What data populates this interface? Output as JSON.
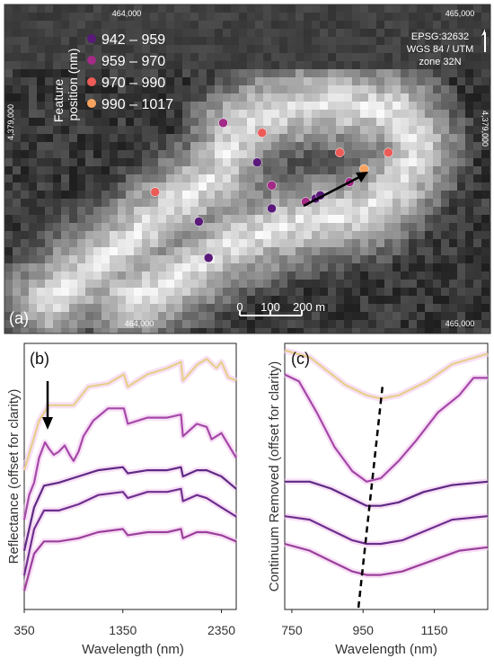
{
  "chart_data": [
    {
      "type": "scatter",
      "panel_label": "(a)",
      "legend_title": [
        "Feature",
        "position (nm)"
      ],
      "legend": [
        {
          "label": "942 – 959",
          "color": "#5a1a7a"
        },
        {
          "label": "959 – 970",
          "color": "#a32a86"
        },
        {
          "label": "970 – 990",
          "color": "#ec5b57"
        },
        {
          "label": "990 – 1017",
          "color": "#f7a35f"
        }
      ],
      "projection": [
        "EPSG:32632",
        "WGS 84 / UTM",
        "zone 32N"
      ],
      "x_ticks": [
        "464,000",
        "465,000"
      ],
      "y_ticks": [
        "4,379,000",
        "4,379,000"
      ],
      "scale_bar": [
        "0",
        "100",
        "200 m"
      ],
      "points": [
        {
          "cls": 1,
          "x": 0.45,
          "y": 0.36
        },
        {
          "cls": 2,
          "x": 0.53,
          "y": 0.39
        },
        {
          "cls": 0,
          "x": 0.52,
          "y": 0.48
        },
        {
          "cls": 2,
          "x": 0.69,
          "y": 0.45
        },
        {
          "cls": 2,
          "x": 0.79,
          "y": 0.45
        },
        {
          "cls": 3,
          "x": 0.74,
          "y": 0.5
        },
        {
          "cls": 1,
          "x": 0.71,
          "y": 0.54
        },
        {
          "cls": 1,
          "x": 0.55,
          "y": 0.55
        },
        {
          "cls": 0,
          "x": 0.64,
          "y": 0.59
        },
        {
          "cls": 0,
          "x": 0.65,
          "y": 0.58
        },
        {
          "cls": 1,
          "x": 0.62,
          "y": 0.6
        },
        {
          "cls": 0,
          "x": 0.55,
          "y": 0.62
        },
        {
          "cls": 2,
          "x": 0.31,
          "y": 0.57
        },
        {
          "cls": 0,
          "x": 0.4,
          "y": 0.66
        },
        {
          "cls": 0,
          "x": 0.42,
          "y": 0.77
        }
      ]
    },
    {
      "type": "line",
      "panel_label": "(b)",
      "xlabel": "Wavelength (nm)",
      "ylabel": "Reflectance (offset for clarity)",
      "xlim": [
        350,
        2500
      ],
      "xticks": [
        350,
        1350,
        2350
      ],
      "series": [
        {
          "color": "#e6cf8b",
          "points": [
            [
              350,
              0.62
            ],
            [
              500,
              0.78
            ],
            [
              600,
              0.83
            ],
            [
              700,
              0.83
            ],
            [
              850,
              0.83
            ],
            [
              1000,
              0.89
            ],
            [
              1200,
              0.9
            ],
            [
              1360,
              0.93
            ],
            [
              1400,
              0.89
            ],
            [
              1600,
              0.93
            ],
            [
              1800,
              0.95
            ],
            [
              1940,
              0.97
            ],
            [
              1960,
              0.91
            ],
            [
              2100,
              0.96
            ],
            [
              2200,
              0.98
            ],
            [
              2300,
              0.95
            ],
            [
              2350,
              0.97
            ],
            [
              2420,
              0.92
            ],
            [
              2500,
              0.91
            ]
          ]
        },
        {
          "color": "#a548a8",
          "points": [
            [
              350,
              0.46
            ],
            [
              400,
              0.54
            ],
            [
              450,
              0.58
            ],
            [
              500,
              0.66
            ],
            [
              560,
              0.71
            ],
            [
              600,
              0.69
            ],
            [
              650,
              0.67
            ],
            [
              700,
              0.68
            ],
            [
              760,
              0.7
            ],
            [
              810,
              0.67
            ],
            [
              850,
              0.65
            ],
            [
              900,
              0.68
            ],
            [
              950,
              0.73
            ],
            [
              1050,
              0.78
            ],
            [
              1200,
              0.82
            ],
            [
              1360,
              0.82
            ],
            [
              1400,
              0.77
            ],
            [
              1600,
              0.79
            ],
            [
              1800,
              0.79
            ],
            [
              1940,
              0.8
            ],
            [
              1960,
              0.73
            ],
            [
              2100,
              0.77
            ],
            [
              2200,
              0.76
            ],
            [
              2250,
              0.72
            ],
            [
              2350,
              0.74
            ],
            [
              2500,
              0.66
            ]
          ]
        },
        {
          "color": "#5d2a84",
          "points": [
            [
              350,
              0.36
            ],
            [
              450,
              0.5
            ],
            [
              550,
              0.57
            ],
            [
              700,
              0.58
            ],
            [
              900,
              0.6
            ],
            [
              1100,
              0.62
            ],
            [
              1350,
              0.63
            ],
            [
              1400,
              0.61
            ],
            [
              1600,
              0.62
            ],
            [
              1800,
              0.62
            ],
            [
              1940,
              0.63
            ],
            [
              1960,
              0.6
            ],
            [
              2100,
              0.62
            ],
            [
              2200,
              0.62
            ],
            [
              2350,
              0.6
            ],
            [
              2500,
              0.56
            ]
          ]
        },
        {
          "color": "#6e2f8f",
          "points": [
            [
              350,
              0.28
            ],
            [
              450,
              0.43
            ],
            [
              550,
              0.49
            ],
            [
              700,
              0.49
            ],
            [
              900,
              0.51
            ],
            [
              1100,
              0.54
            ],
            [
              1350,
              0.55
            ],
            [
              1400,
              0.53
            ],
            [
              1600,
              0.55
            ],
            [
              1800,
              0.55
            ],
            [
              1940,
              0.56
            ],
            [
              1960,
              0.52
            ],
            [
              2100,
              0.54
            ],
            [
              2200,
              0.53
            ],
            [
              2350,
              0.5
            ],
            [
              2500,
              0.47
            ]
          ]
        },
        {
          "color": "#9b3f9b",
          "points": [
            [
              350,
              0.23
            ],
            [
              450,
              0.35
            ],
            [
              550,
              0.39
            ],
            [
              700,
              0.39
            ],
            [
              900,
              0.4
            ],
            [
              1100,
              0.42
            ],
            [
              1350,
              0.43
            ],
            [
              1400,
              0.41
            ],
            [
              1600,
              0.42
            ],
            [
              1800,
              0.42
            ],
            [
              1940,
              0.43
            ],
            [
              1960,
              0.4
            ],
            [
              2100,
              0.42
            ],
            [
              2200,
              0.42
            ],
            [
              2350,
              0.41
            ],
            [
              2500,
              0.39
            ]
          ]
        }
      ]
    },
    {
      "type": "line",
      "panel_label": "(c)",
      "xlabel": "Wavelength (nm)",
      "ylabel": "Continuum Removed (offset for clarity)",
      "xlim": [
        730,
        1300
      ],
      "xticks": [
        750,
        950,
        1150
      ],
      "series": [
        {
          "color": "#e6cf8b",
          "points": [
            [
              730,
              1.0
            ],
            [
              800,
              0.98
            ],
            [
              900,
              0.9
            ],
            [
              960,
              0.87
            ],
            [
              1000,
              0.86
            ],
            [
              1050,
              0.87
            ],
            [
              1130,
              0.91
            ],
            [
              1200,
              0.96
            ],
            [
              1300,
              0.99
            ]
          ]
        },
        {
          "color": "#a548a8",
          "points": [
            [
              730,
              0.93
            ],
            [
              770,
              0.91
            ],
            [
              820,
              0.82
            ],
            [
              870,
              0.72
            ],
            [
              920,
              0.65
            ],
            [
              960,
              0.62
            ],
            [
              1000,
              0.63
            ],
            [
              1050,
              0.68
            ],
            [
              1100,
              0.74
            ],
            [
              1160,
              0.82
            ],
            [
              1220,
              0.87
            ],
            [
              1260,
              0.92
            ],
            [
              1300,
              0.92
            ]
          ]
        },
        {
          "color": "#5d2a84",
          "points": [
            [
              730,
              0.62
            ],
            [
              800,
              0.62
            ],
            [
              860,
              0.6
            ],
            [
              920,
              0.57
            ],
            [
              960,
              0.55
            ],
            [
              1000,
              0.55
            ],
            [
              1050,
              0.56
            ],
            [
              1120,
              0.59
            ],
            [
              1200,
              0.61
            ],
            [
              1300,
              0.62
            ]
          ]
        },
        {
          "color": "#6e2f8f",
          "points": [
            [
              730,
              0.52
            ],
            [
              800,
              0.51
            ],
            [
              860,
              0.48
            ],
            [
              920,
              0.45
            ],
            [
              960,
              0.44
            ],
            [
              1000,
              0.44
            ],
            [
              1060,
              0.45
            ],
            [
              1130,
              0.48
            ],
            [
              1200,
              0.51
            ],
            [
              1300,
              0.52
            ]
          ]
        },
        {
          "color": "#9b3f9b",
          "points": [
            [
              730,
              0.44
            ],
            [
              800,
              0.42
            ],
            [
              860,
              0.39
            ],
            [
              920,
              0.36
            ],
            [
              960,
              0.35
            ],
            [
              1000,
              0.35
            ],
            [
              1060,
              0.36
            ],
            [
              1140,
              0.39
            ],
            [
              1220,
              0.42
            ],
            [
              1300,
              0.43
            ]
          ]
        }
      ],
      "feature_line": {
        "x": [
          937,
          1005
        ]
      }
    }
  ]
}
